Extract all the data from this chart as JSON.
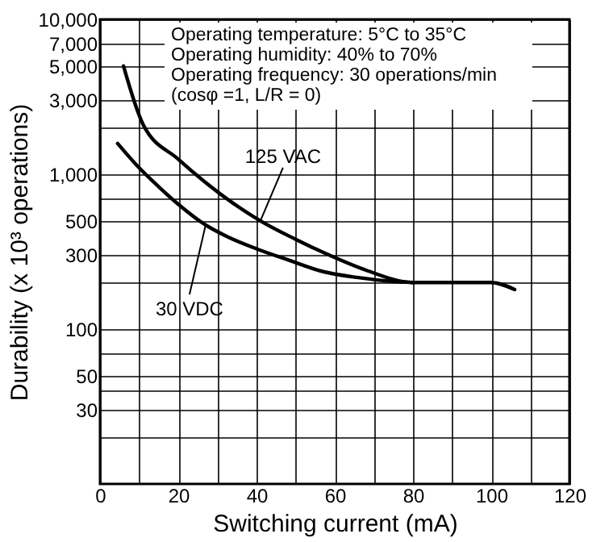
{
  "chart_data": {
    "type": "line",
    "xlabel": "Switching current (mA)",
    "ylabel": "Durability (x 10³ operations)",
    "annotations": [
      "Operating temperature: 5°C to 35°C",
      "Operating humidity: 40% to 70%",
      "Operating frequency: 30 operations/min",
      "(cosφ =1, L/R = 0)"
    ],
    "series": [
      {
        "name": "125 VAC",
        "color": "#000000",
        "x": [
          6,
          11,
          20,
          26.6,
          34,
          41,
          50,
          58,
          68,
          80,
          100,
          106
        ],
        "values": [
          5000,
          2100,
          1250,
          900,
          650,
          500,
          380,
          305,
          240,
          200,
          200,
          180
        ]
      },
      {
        "name": "30 VDC",
        "color": "#000000",
        "x": [
          4.5,
          10,
          15,
          20,
          27,
          33,
          40,
          48,
          57,
          66,
          75,
          80
        ],
        "values": [
          1580,
          1100,
          830,
          640,
          470,
          390,
          330,
          280,
          235,
          215,
          203,
          200
        ]
      }
    ],
    "log": "y",
    "grid": true,
    "line_style": "solid",
    "marker": "none",
    "legend": false,
    "xlim": [
      0,
      120
    ],
    "ylim": [
      10,
      10000
    ],
    "xticks": [
      0,
      {
        "value": 10,
        "label": null
      },
      20,
      {
        "value": 30,
        "label": null
      },
      40,
      {
        "value": 50,
        "label": null
      },
      60,
      {
        "value": 70,
        "label": null
      },
      80,
      {
        "value": 90,
        "label": null
      },
      100,
      {
        "value": 110,
        "label": null
      },
      120
    ],
    "yticks": [
      {
        "value": 20,
        "label": null
      },
      30,
      {
        "value": 40,
        "label": null
      },
      50,
      {
        "value": 70,
        "label": null
      },
      100,
      {
        "value": 200,
        "label": null
      },
      300,
      500,
      {
        "value": 700,
        "label": null
      },
      {
        "value": 1000,
        "label": "1,000"
      },
      {
        "value": 2000,
        "label": null
      },
      {
        "value": 3000,
        "label": "3,000"
      },
      {
        "value": 5000,
        "label": "5,000"
      },
      {
        "value": 7000,
        "label": "7,000"
      },
      {
        "value": 10000,
        "label": "10,000"
      }
    ]
  }
}
